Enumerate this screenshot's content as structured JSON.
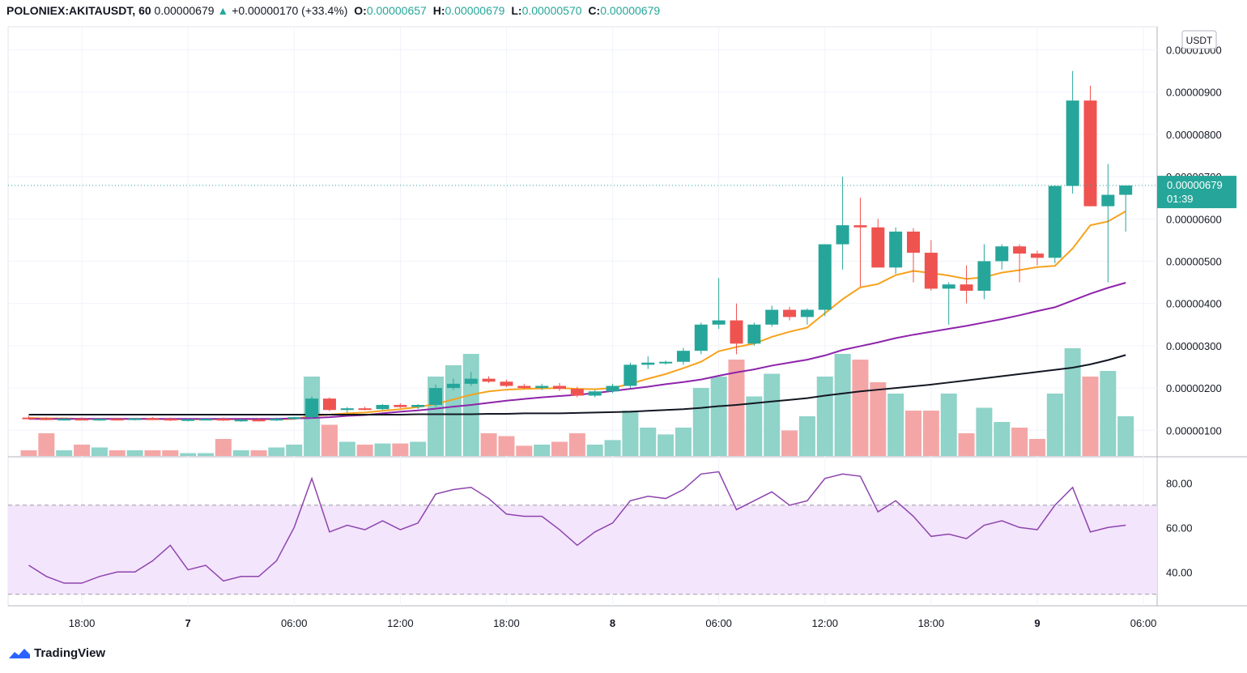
{
  "header": {
    "symbol": "POLONIEX:AKITAUSDT, 60",
    "last": "0.00000679",
    "change": "+0.00000170 (+33.4%)",
    "o_label": "O:",
    "o_value": "0.00000657",
    "h_label": "H:",
    "h_value": "0.00000679",
    "l_label": "L:",
    "l_value": "0.00000570",
    "c_label": "C:",
    "c_value": "0.00000679"
  },
  "brand": {
    "name": "TradingView",
    "icon": "tradingview-logo-icon"
  },
  "colors": {
    "up": "#26a69a",
    "down": "#ef5350",
    "vol_up": "#8fd3c9",
    "vol_down": "#f4a6a6",
    "ma_fast": "#f7a21b",
    "ma_mid": "#8e24aa",
    "ma_slow": "#131722",
    "rsi_line": "#8e44ad",
    "rsi_band": "#f3e5fc"
  },
  "chart_data": {
    "type": "candlestick",
    "currency_label": "USDT",
    "last_price_label": "0.00000679",
    "countdown_label": "01:39",
    "price_axis": {
      "range": [
        6e-07,
        1.02e-06
      ],
      "ticks": [
        "0.00000100",
        "0.00000200",
        "0.00000300",
        "0.00000400",
        "0.00000500",
        "0.00000600",
        "0.00000700",
        "0.00000800",
        "0.00000900",
        "0.00001000"
      ],
      "tick_values": [
        1e-06,
        2e-06,
        3e-06,
        4e-06,
        5e-06,
        6e-06,
        7e-06,
        8e-06,
        9e-06,
        1e-05
      ]
    },
    "x_ticks": [
      {
        "label": "18:00",
        "bar": 3
      },
      {
        "label": "7",
        "bar": 9
      },
      {
        "label": "06:00",
        "bar": 15
      },
      {
        "label": "12:00",
        "bar": 21
      },
      {
        "label": "18:00",
        "bar": 27
      },
      {
        "label": "8",
        "bar": 33
      },
      {
        "label": "06:00",
        "bar": 39
      },
      {
        "label": "12:00",
        "bar": 45
      },
      {
        "label": "18:00",
        "bar": 51
      },
      {
        "label": "9",
        "bar": 57
      },
      {
        "label": "06:00",
        "bar": 63
      }
    ],
    "candles": [
      [
        1.3,
        1.34,
        1.26,
        1.28,
        1
      ],
      [
        1.28,
        1.31,
        1.24,
        1.26,
        4
      ],
      [
        1.26,
        1.29,
        1.23,
        1.27,
        1
      ],
      [
        1.27,
        1.31,
        1.24,
        1.25,
        2
      ],
      [
        1.25,
        1.28,
        1.22,
        1.27,
        1.5
      ],
      [
        1.27,
        1.3,
        1.24,
        1.26,
        1
      ],
      [
        1.26,
        1.29,
        1.23,
        1.28,
        1
      ],
      [
        1.28,
        1.31,
        1.25,
        1.27,
        1
      ],
      [
        1.27,
        1.3,
        1.22,
        1.24,
        1
      ],
      [
        1.24,
        1.27,
        1.21,
        1.26,
        0.5
      ],
      [
        1.26,
        1.29,
        1.23,
        1.27,
        0.5
      ],
      [
        1.27,
        1.3,
        1.22,
        1.23,
        3
      ],
      [
        1.23,
        1.27,
        1.2,
        1.25,
        1
      ],
      [
        1.25,
        1.29,
        1.21,
        1.24,
        1
      ],
      [
        1.24,
        1.3,
        1.22,
        1.27,
        1.5
      ],
      [
        1.27,
        1.32,
        1.25,
        1.31,
        2
      ],
      [
        1.31,
        1.8,
        1.28,
        1.75,
        14
      ],
      [
        1.75,
        1.78,
        1.45,
        1.48,
        5.5
      ],
      [
        1.48,
        1.55,
        1.42,
        1.52,
        2.5
      ],
      [
        1.52,
        1.56,
        1.47,
        1.5,
        2
      ],
      [
        1.5,
        1.62,
        1.48,
        1.6,
        2.2
      ],
      [
        1.6,
        1.64,
        1.52,
        1.55,
        2.2
      ],
      [
        1.55,
        1.62,
        1.5,
        1.6,
        2.5
      ],
      [
        1.6,
        2.08,
        1.55,
        2.0,
        14
      ],
      [
        2.0,
        2.22,
        1.95,
        2.1,
        16
      ],
      [
        2.1,
        2.38,
        2.05,
        2.22,
        18
      ],
      [
        2.22,
        2.28,
        2.12,
        2.15,
        4
      ],
      [
        2.15,
        2.2,
        2.02,
        2.05,
        3.5
      ],
      [
        2.05,
        2.1,
        1.98,
        2.0,
        1.8
      ],
      [
        2.0,
        2.1,
        1.95,
        2.05,
        2
      ],
      [
        2.05,
        2.12,
        1.93,
        1.98,
        2.5
      ],
      [
        1.98,
        2.03,
        1.78,
        1.82,
        4
      ],
      [
        1.82,
        1.95,
        1.78,
        1.92,
        2
      ],
      [
        1.92,
        2.1,
        1.88,
        2.05,
        2.8
      ],
      [
        2.05,
        2.6,
        2.0,
        2.55,
        8
      ],
      [
        2.55,
        2.75,
        2.45,
        2.6,
        5
      ],
      [
        2.6,
        2.65,
        2.55,
        2.62,
        3.8
      ],
      [
        2.62,
        2.95,
        2.55,
        2.88,
        5
      ],
      [
        2.88,
        3.55,
        2.8,
        3.5,
        12
      ],
      [
        3.5,
        4.6,
        3.4,
        3.6,
        14
      ],
      [
        3.6,
        4.0,
        2.8,
        3.05,
        17
      ],
      [
        3.05,
        3.55,
        3.0,
        3.5,
        10.5
      ],
      [
        3.5,
        3.95,
        3.45,
        3.85,
        14.5
      ],
      [
        3.85,
        3.92,
        3.6,
        3.68,
        4.5
      ],
      [
        3.68,
        3.88,
        3.5,
        3.85,
        7
      ],
      [
        3.85,
        5.4,
        3.7,
        5.4,
        14
      ],
      [
        5.4,
        7.0,
        4.8,
        5.85,
        18
      ],
      [
        5.85,
        6.5,
        4.4,
        5.8,
        17
      ],
      [
        5.8,
        6.0,
        4.9,
        4.85,
        13
      ],
      [
        4.85,
        5.8,
        4.7,
        5.7,
        11
      ],
      [
        5.7,
        5.78,
        4.5,
        5.2,
        8
      ],
      [
        5.2,
        5.5,
        4.3,
        4.35,
        8
      ],
      [
        4.35,
        4.5,
        3.5,
        4.45,
        11
      ],
      [
        4.45,
        4.9,
        4.0,
        4.3,
        4
      ],
      [
        4.3,
        5.4,
        4.1,
        5.0,
        8.5
      ],
      [
        5.0,
        5.4,
        4.8,
        5.35,
        6
      ],
      [
        5.35,
        5.4,
        4.5,
        5.18,
        5
      ],
      [
        5.18,
        5.25,
        4.9,
        5.08,
        3
      ],
      [
        5.08,
        6.8,
        4.95,
        6.78,
        11
      ],
      [
        6.78,
        9.5,
        6.6,
        8.8,
        19
      ],
      [
        8.8,
        9.15,
        6.3,
        6.3,
        14
      ],
      [
        6.3,
        7.3,
        4.5,
        6.57,
        15
      ],
      [
        6.57,
        6.79,
        5.7,
        6.79,
        7
      ]
    ],
    "volume_scale": 20,
    "ma_series": [
      {
        "key": "ma_fast",
        "values": [
          1.29,
          1.28,
          1.28,
          1.27,
          1.27,
          1.27,
          1.27,
          1.27,
          1.26,
          1.26,
          1.26,
          1.26,
          1.26,
          1.26,
          1.26,
          1.27,
          1.34,
          1.37,
          1.4,
          1.42,
          1.46,
          1.5,
          1.55,
          1.62,
          1.73,
          1.84,
          1.92,
          1.96,
          1.98,
          1.99,
          2.0,
          1.98,
          1.97,
          2.0,
          2.1,
          2.22,
          2.33,
          2.47,
          2.62,
          2.87,
          2.97,
          3.05,
          3.21,
          3.33,
          3.43,
          3.77,
          4.1,
          4.38,
          4.46,
          4.67,
          4.77,
          4.72,
          4.66,
          4.58,
          4.62,
          4.73,
          4.79,
          4.86,
          4.89,
          5.3,
          5.85,
          5.94,
          6.18
        ]
      },
      {
        "key": "ma_mid",
        "values": [
          1.27,
          1.27,
          1.27,
          1.27,
          1.27,
          1.27,
          1.27,
          1.27,
          1.27,
          1.27,
          1.27,
          1.27,
          1.27,
          1.27,
          1.27,
          1.28,
          1.29,
          1.31,
          1.34,
          1.36,
          1.4,
          1.44,
          1.47,
          1.51,
          1.56,
          1.6,
          1.65,
          1.7,
          1.74,
          1.78,
          1.81,
          1.84,
          1.88,
          1.93,
          1.98,
          2.03,
          2.09,
          2.14,
          2.2,
          2.29,
          2.37,
          2.44,
          2.53,
          2.6,
          2.67,
          2.77,
          2.9,
          2.99,
          3.08,
          3.18,
          3.26,
          3.33,
          3.4,
          3.47,
          3.55,
          3.63,
          3.72,
          3.82,
          3.91,
          4.07,
          4.23,
          4.37,
          4.49
        ]
      },
      {
        "key": "ma_slow",
        "values": [
          1.37,
          1.37,
          1.37,
          1.37,
          1.37,
          1.37,
          1.37,
          1.37,
          1.37,
          1.37,
          1.37,
          1.37,
          1.37,
          1.37,
          1.37,
          1.37,
          1.37,
          1.37,
          1.37,
          1.37,
          1.37,
          1.37,
          1.38,
          1.38,
          1.38,
          1.38,
          1.39,
          1.39,
          1.4,
          1.4,
          1.4,
          1.41,
          1.42,
          1.43,
          1.44,
          1.46,
          1.48,
          1.5,
          1.53,
          1.57,
          1.6,
          1.64,
          1.68,
          1.72,
          1.76,
          1.82,
          1.87,
          1.92,
          1.96,
          2.0,
          2.04,
          2.08,
          2.13,
          2.18,
          2.23,
          2.28,
          2.33,
          2.38,
          2.43,
          2.48,
          2.56,
          2.66,
          2.78
        ]
      }
    ],
    "rsi": {
      "range": [
        30,
        90
      ],
      "band": [
        30,
        70
      ],
      "ticks": [
        "40.00",
        "60.00",
        "80.00"
      ],
      "tick_values": [
        40,
        60,
        80
      ],
      "values": [
        43,
        38,
        35,
        35,
        38,
        40,
        40,
        45,
        52,
        41,
        43,
        36,
        38,
        38,
        45,
        60,
        82,
        58,
        61,
        59,
        63,
        59,
        62,
        75,
        77,
        78,
        73,
        66,
        65,
        65,
        59,
        52,
        58,
        62,
        72,
        74,
        73,
        77,
        84,
        85,
        68,
        72,
        76,
        70,
        72,
        82,
        84,
        83,
        67,
        72,
        65,
        56,
        57,
        55,
        61,
        63,
        60,
        59,
        70,
        78,
        58,
        60,
        61
      ]
    }
  }
}
